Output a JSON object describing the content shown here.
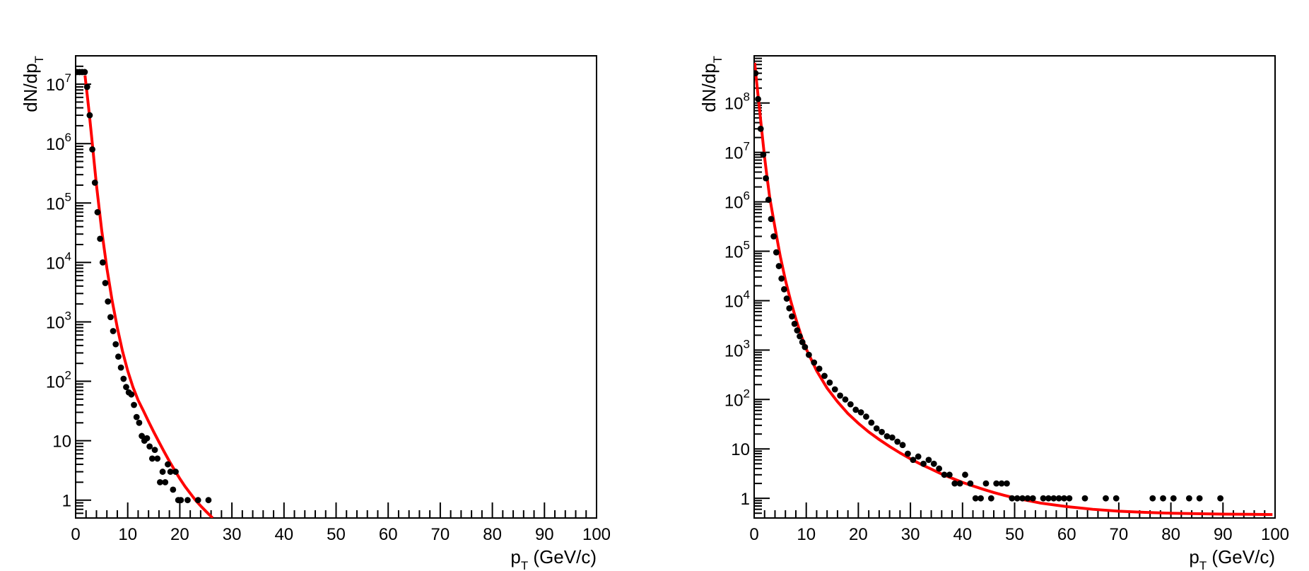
{
  "colors": {
    "points": "#000000",
    "fit": "#ff0000",
    "background": "#ffffff"
  },
  "chart_data": [
    {
      "type": "scatter",
      "title": "",
      "xlabel": "p_T (GeV/c)",
      "ylabel": "dN/dp_T",
      "xlim": [
        0,
        100
      ],
      "ylim": [
        0.5,
        30000000
      ],
      "yscale": "log",
      "grid": false,
      "xticks": [
        0,
        10,
        20,
        30,
        40,
        50,
        60,
        70,
        80,
        90,
        100
      ],
      "yticks": [
        {
          "value": 1,
          "base": "1",
          "exp": ""
        },
        {
          "value": 10,
          "base": "10",
          "exp": ""
        },
        {
          "value": 100,
          "base": "10",
          "exp": "2"
        },
        {
          "value": 1000,
          "base": "10",
          "exp": "3"
        },
        {
          "value": 10000,
          "base": "10",
          "exp": "4"
        },
        {
          "value": 100000,
          "base": "10",
          "exp": "5"
        },
        {
          "value": 1000000,
          "base": "10",
          "exp": "6"
        },
        {
          "value": 10000000,
          "base": "10",
          "exp": "7"
        }
      ],
      "series": [
        {
          "kind": "points",
          "x": [
            0.25,
            0.75,
            1.25,
            1.75,
            2.2,
            2.7,
            3.2,
            3.7,
            4.2,
            4.7,
            5.2,
            5.7,
            6.2,
            6.7,
            7.2,
            7.7,
            8.2,
            8.7,
            9.2,
            9.7,
            10.2,
            10.7,
            11.2,
            11.7,
            12.2,
            12.7,
            13.2,
            13.7,
            14.2,
            14.7,
            15.2,
            15.7,
            16.2,
            16.7,
            17.2,
            17.7,
            18.2,
            18.7,
            19.2,
            19.7,
            20.2,
            21.5,
            23.5,
            25.5
          ],
          "y": [
            16000000,
            16000000,
            16000000,
            16000000,
            9000000,
            3000000,
            800000,
            220000,
            70000,
            25000,
            10000,
            4500,
            2200,
            1200,
            700,
            420,
            260,
            170,
            110,
            80,
            65,
            60,
            40,
            25,
            20,
            12,
            10,
            11,
            8,
            5,
            7,
            5,
            2,
            3,
            2,
            4,
            3,
            1.5,
            3,
            1,
            1,
            1,
            1,
            1
          ]
        },
        {
          "kind": "fit",
          "x": [
            1.8,
            2.5,
            3,
            4,
            5,
            6,
            7,
            8,
            9,
            10,
            11,
            12,
            13,
            14,
            15,
            16,
            17,
            18,
            19,
            20,
            21,
            22,
            23,
            24,
            25,
            26.3
          ],
          "y": [
            14000000,
            4000000,
            1500000,
            200000,
            35000,
            8000,
            2300,
            800,
            320,
            150,
            80,
            48,
            32,
            21,
            14,
            9.5,
            6.5,
            4.5,
            3.2,
            2.3,
            1.7,
            1.3,
            1.0,
            0.8,
            0.65,
            0.5
          ]
        }
      ]
    },
    {
      "type": "scatter",
      "title": "",
      "xlabel": "p_T (GeV/c)",
      "ylabel": "dN/dp_T",
      "xlim": [
        0,
        100
      ],
      "ylim": [
        0.4,
        900000000
      ],
      "yscale": "log",
      "grid": false,
      "xticks": [
        0,
        10,
        20,
        30,
        40,
        50,
        60,
        70,
        80,
        90,
        100
      ],
      "yticks": [
        {
          "value": 1,
          "base": "1",
          "exp": ""
        },
        {
          "value": 10,
          "base": "10",
          "exp": ""
        },
        {
          "value": 100,
          "base": "10",
          "exp": "2"
        },
        {
          "value": 1000,
          "base": "10",
          "exp": "3"
        },
        {
          "value": 10000,
          "base": "10",
          "exp": "4"
        },
        {
          "value": 100000,
          "base": "10",
          "exp": "5"
        },
        {
          "value": 1000000,
          "base": "10",
          "exp": "6"
        },
        {
          "value": 10000000,
          "base": "10",
          "exp": "7"
        },
        {
          "value": 100000000,
          "base": "10",
          "exp": "8"
        }
      ],
      "series": [
        {
          "kind": "points",
          "x": [
            0.25,
            0.75,
            1.25,
            1.75,
            2.25,
            2.75,
            3.25,
            3.75,
            4.25,
            4.75,
            5.25,
            5.75,
            6.25,
            6.75,
            7.25,
            7.75,
            8.25,
            8.75,
            9.25,
            9.75,
            10.5,
            11.5,
            12.5,
            13.5,
            14.5,
            15.5,
            16.5,
            17.5,
            18.5,
            19.5,
            20.5,
            21.5,
            22.5,
            23.5,
            24.5,
            25.5,
            26.5,
            27.5,
            28.5,
            29.5,
            30.5,
            31.5,
            32.5,
            33.5,
            34.5,
            35.5,
            36.5,
            37.5,
            38.5,
            39.5,
            40.5,
            41.5,
            42.5,
            43.5,
            44.5,
            45.5,
            46.5,
            47.5,
            48.5,
            49.5,
            50.5,
            51.5,
            52.5,
            53.5,
            55.5,
            56.5,
            57.5,
            58.5,
            59.5,
            60.5,
            63.5,
            67.5,
            69.5,
            76.5,
            78.5,
            80.5,
            83.5,
            85.5,
            89.5
          ],
          "y": [
            400000000,
            120000000,
            30000000,
            9000000,
            3000000,
            1100000,
            450000,
            200000,
            95000,
            50000,
            28000,
            17000,
            11000,
            7000,
            4800,
            3400,
            2500,
            1900,
            1450,
            1150,
            800,
            560,
            420,
            300,
            220,
            160,
            120,
            100,
            80,
            62,
            55,
            45,
            34,
            26,
            22,
            18,
            17,
            14,
            12,
            8,
            6,
            7,
            5,
            6,
            5,
            4,
            3,
            3,
            2,
            2,
            3,
            2,
            1,
            1,
            2,
            1,
            2,
            2,
            2,
            1,
            1,
            1,
            1,
            1,
            1,
            1,
            1,
            1,
            1,
            1,
            1,
            1,
            1,
            1,
            1,
            1,
            1,
            1,
            1
          ]
        },
        {
          "kind": "fit",
          "x": [
            0.1,
            0.5,
            1,
            1.5,
            2,
            2.5,
            3,
            4,
            5,
            6,
            7,
            8,
            9,
            10,
            12,
            14,
            16,
            18,
            20,
            22,
            24,
            26,
            28,
            30,
            32,
            34,
            36,
            38,
            40,
            42,
            44,
            46,
            48,
            50,
            55,
            60,
            65,
            70,
            75,
            80,
            85,
            90,
            95,
            99.5
          ],
          "y": [
            650000000,
            250000000,
            80000000,
            25000000,
            8000000,
            3000000,
            1200000,
            300000,
            80000,
            26000,
            10000,
            4300,
            2000,
            1050,
            380,
            170,
            90,
            52,
            33,
            22,
            15.5,
            11.2,
            8.3,
            6.3,
            4.9,
            3.9,
            3.1,
            2.55,
            2.1,
            1.78,
            1.52,
            1.31,
            1.15,
            1.02,
            0.8,
            0.68,
            0.6,
            0.55,
            0.52,
            0.5,
            0.49,
            0.48,
            0.475,
            0.47
          ]
        }
      ]
    }
  ]
}
